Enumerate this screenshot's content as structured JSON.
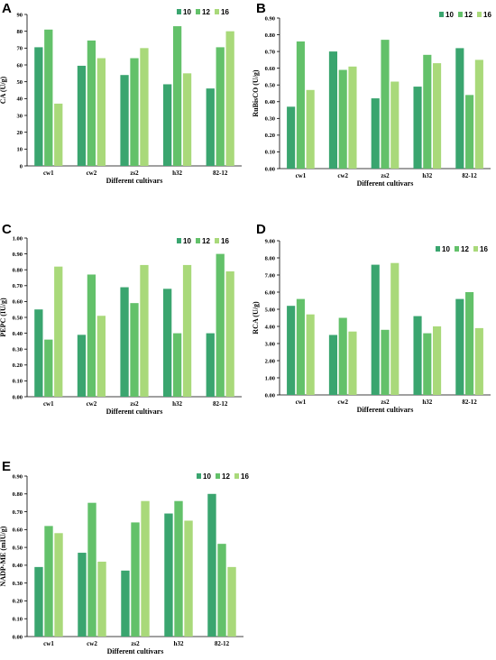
{
  "colors": {
    "s10": "#3aa56f",
    "s12": "#63c16a",
    "s16": "#a9d97a"
  },
  "chart_data": [
    {
      "type": "bar",
      "panel": "A",
      "categories": [
        "cw1",
        "cw2",
        "zs2",
        "h32",
        "82-12"
      ],
      "series": [
        {
          "name": "10",
          "values": [
            70.5,
            59.5,
            54.0,
            48.5,
            46.0
          ]
        },
        {
          "name": "12",
          "values": [
            81.0,
            74.5,
            64.0,
            83.0,
            70.5
          ]
        },
        {
          "name": "16",
          "values": [
            37.0,
            64.0,
            70.0,
            55.0,
            80.0
          ]
        }
      ],
      "xlabel": "Different cultivars",
      "ylabel": "CA (U/g)",
      "ylim": [
        0,
        90
      ],
      "yticks": [
        "0",
        "10",
        "20",
        "30",
        "40",
        "50",
        "60",
        "70",
        "80",
        "90"
      ],
      "legend": "top-right"
    },
    {
      "type": "bar",
      "panel": "B",
      "categories": [
        "cw1",
        "cw2",
        "zs2",
        "h32",
        "82-12"
      ],
      "series": [
        {
          "name": "10",
          "values": [
            0.37,
            0.7,
            0.42,
            0.49,
            0.72
          ]
        },
        {
          "name": "12",
          "values": [
            0.76,
            0.59,
            0.77,
            0.68,
            0.44
          ]
        },
        {
          "name": "16",
          "values": [
            0.47,
            0.61,
            0.52,
            0.63,
            0.65
          ]
        }
      ],
      "xlabel": "Different cultivars",
      "ylabel": "RuBisCO (U/g)",
      "ylim": [
        0,
        0.9
      ],
      "yticks": [
        "0.00",
        "0.10",
        "0.20",
        "0.30",
        "0.40",
        "0.50",
        "0.60",
        "0.70",
        "0.80",
        "0.90"
      ],
      "legend": "top-right"
    },
    {
      "type": "bar",
      "panel": "C",
      "categories": [
        "cw1",
        "cw2",
        "zs2",
        "h32",
        "82-12"
      ],
      "series": [
        {
          "name": "10",
          "values": [
            0.55,
            0.39,
            0.69,
            0.68,
            0.4
          ]
        },
        {
          "name": "12",
          "values": [
            0.36,
            0.77,
            0.59,
            0.4,
            0.9
          ]
        },
        {
          "name": "16",
          "values": [
            0.82,
            0.51,
            0.83,
            0.83,
            0.79
          ]
        }
      ],
      "xlabel": "Different cultivars",
      "ylabel": "PEPC (IU/g)",
      "ylim": [
        0,
        1.0
      ],
      "yticks": [
        "0.00",
        "0.10",
        "0.20",
        "0.30",
        "0.40",
        "0.50",
        "0.60",
        "0.70",
        "0.80",
        "0.90",
        "1.00"
      ],
      "legend": "top-right"
    },
    {
      "type": "bar",
      "panel": "D",
      "categories": [
        "cw1",
        "cw2",
        "zs2",
        "h32",
        "82-12"
      ],
      "series": [
        {
          "name": "10",
          "values": [
            5.2,
            3.5,
            7.6,
            4.6,
            5.6
          ]
        },
        {
          "name": "12",
          "values": [
            5.6,
            4.5,
            3.8,
            3.6,
            6.0
          ]
        },
        {
          "name": "16",
          "values": [
            4.7,
            3.7,
            7.7,
            4.0,
            3.9
          ]
        }
      ],
      "xlabel": "Different cultivars",
      "ylabel": "RCA (U/g)",
      "ylim": [
        0,
        9.0
      ],
      "yticks": [
        "0.00",
        "1.00",
        "2.00",
        "3.00",
        "4.00",
        "5.00",
        "6.00",
        "7.00",
        "8.00",
        "9.00"
      ],
      "legend": "top-right"
    },
    {
      "type": "bar",
      "panel": "E",
      "categories": [
        "cw1",
        "cw2",
        "zs2",
        "h32",
        "82-12"
      ],
      "series": [
        {
          "name": "10",
          "values": [
            0.39,
            0.47,
            0.37,
            0.69,
            0.8
          ]
        },
        {
          "name": "12",
          "values": [
            0.62,
            0.75,
            0.64,
            0.76,
            0.52
          ]
        },
        {
          "name": "16",
          "values": [
            0.58,
            0.42,
            0.76,
            0.65,
            0.39
          ]
        }
      ],
      "xlabel": "Different cultivars",
      "ylabel": "NADP-ME (mIU/g)",
      "ylim": [
        0,
        0.9
      ],
      "yticks": [
        "0.00",
        "0.10",
        "0.20",
        "0.30",
        "0.40",
        "0.50",
        "0.60",
        "0.70",
        "0.80",
        "0.90"
      ],
      "legend": "top-right"
    }
  ]
}
